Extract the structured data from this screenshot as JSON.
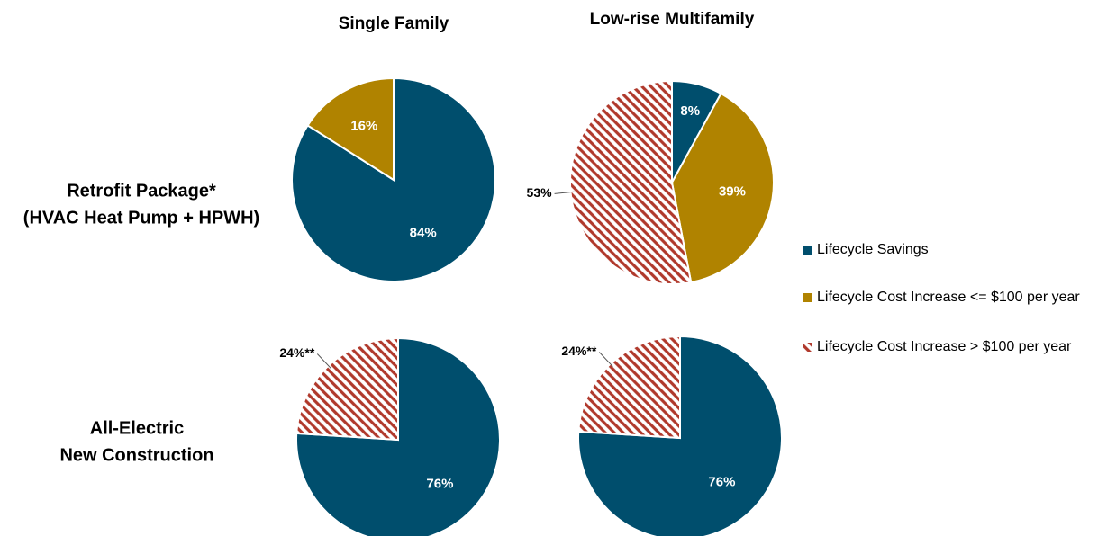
{
  "column_labels": [
    "Single Family",
    "Low-rise Multifamily"
  ],
  "row_labels": [
    [
      "Retrofit Package*",
      "(HVAC Heat Pump + HPWH)"
    ],
    [
      "All-Electric",
      "New  Construction"
    ]
  ],
  "legend": {
    "categories": [
      "Lifecycle Savings",
      "Lifecycle Cost Increase <= $100 per year",
      "Lifecycle Cost Increase > $100 per year"
    ],
    "colors": [
      "#004e6d",
      "#b08300",
      "#b0392c"
    ],
    "patterns": [
      "solid",
      "solid",
      "hatch"
    ]
  },
  "chart_data": [
    {
      "type": "pie",
      "values": [
        84,
        16,
        null
      ],
      "value_labels": [
        "84%",
        "16%",
        null
      ]
    },
    {
      "type": "pie",
      "values": [
        8,
        39,
        53
      ],
      "value_labels": [
        "8%",
        "39%",
        "53%"
      ]
    },
    {
      "type": "pie",
      "values": [
        76,
        null,
        24
      ],
      "value_labels": [
        "76%",
        null,
        "24%**"
      ]
    },
    {
      "type": "pie",
      "values": [
        76,
        null,
        24
      ],
      "value_labels": [
        "76%",
        null,
        "24%**"
      ]
    }
  ]
}
